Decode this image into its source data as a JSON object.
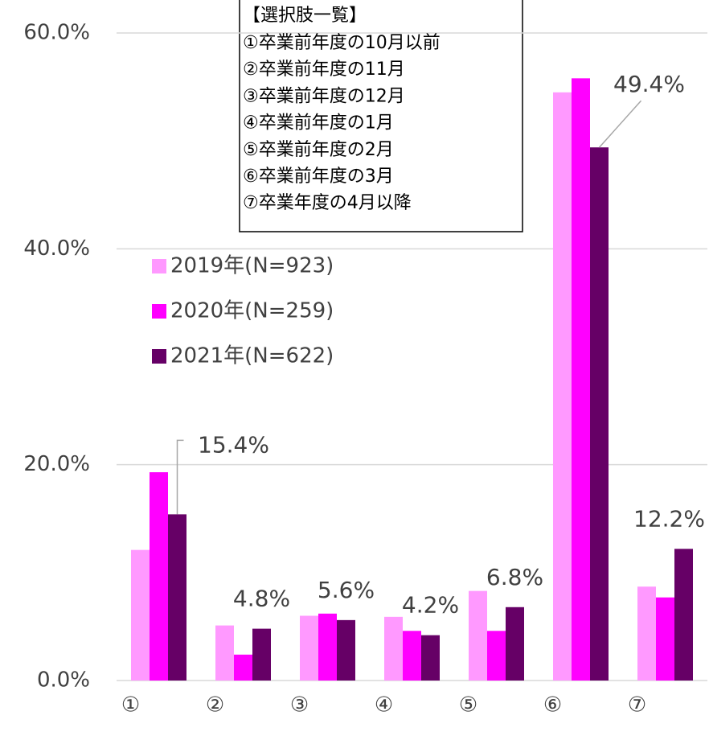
{
  "chart_data": {
    "type": "bar",
    "categories": [
      "①",
      "②",
      "③",
      "④",
      "⑤",
      "⑥",
      "⑦"
    ],
    "series": [
      {
        "name": "2019年(N=923)",
        "color": "#ff99ff",
        "values": [
          12.1,
          5.1,
          6.0,
          5.9,
          8.3,
          54.5,
          8.7
        ]
      },
      {
        "name": "2020年(N=259)",
        "color": "#ff00ff",
        "values": [
          19.3,
          2.4,
          6.2,
          4.6,
          4.6,
          55.8,
          7.7
        ]
      },
      {
        "name": "2021年(N=622)",
        "color": "#660066",
        "values": [
          15.4,
          4.8,
          5.6,
          4.2,
          6.8,
          49.4,
          12.2
        ],
        "value_labels": [
          "15.4%",
          "4.8%",
          "5.6%",
          "4.2%",
          "6.8%",
          "49.4%",
          "12.2%"
        ]
      }
    ],
    "ylim": [
      0,
      60
    ],
    "yticks": [
      {
        "value": 0,
        "label": "0.0%"
      },
      {
        "value": 20,
        "label": "20.0%"
      },
      {
        "value": 40,
        "label": "40.0%"
      },
      {
        "value": 60,
        "label": "60.0%"
      }
    ],
    "grid": true,
    "annotation": {
      "title": "【選択肢一覧】",
      "lines": [
        "①卒業前年度の10月以前",
        "②卒業前年度の11月",
        "③卒業前年度の12月",
        "④卒業前年度の1月",
        "⑤卒業前年度の2月",
        "⑥卒業前年度の3月",
        "⑦卒業年度の4月以降"
      ]
    }
  }
}
